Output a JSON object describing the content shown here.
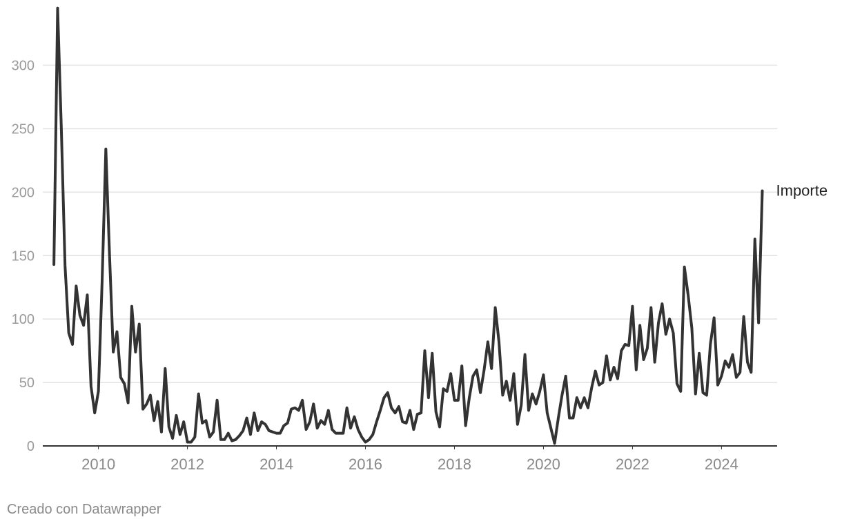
{
  "chart_data": {
    "type": "line",
    "x_axis": {
      "type": "time",
      "ticks": [
        "2010",
        "2012",
        "2014",
        "2016",
        "2018",
        "2020",
        "2022",
        "2024"
      ],
      "range": [
        "2008-10",
        "2025-04"
      ]
    },
    "y_axis": {
      "ticks": [
        "0",
        "50",
        "100",
        "150",
        "200",
        "250",
        "300"
      ],
      "range": [
        0,
        340
      ],
      "grid": true
    },
    "series": [
      {
        "name": "Importe",
        "color": "#333333",
        "start": "2009-01",
        "frequency": "monthly",
        "values": [
          143,
          345,
          250,
          142,
          89,
          80,
          126,
          103,
          95,
          119,
          47,
          26,
          43,
          130,
          234,
          150,
          74,
          90,
          54,
          49,
          34,
          110,
          74,
          96,
          29,
          33,
          40,
          20,
          35,
          11,
          61,
          15,
          6,
          24,
          9,
          19,
          3,
          3,
          7,
          41,
          18,
          20,
          7,
          11,
          36,
          5,
          5,
          10,
          4,
          5,
          8,
          12,
          22,
          9,
          26,
          12,
          19,
          17,
          12,
          11,
          10,
          10,
          16,
          18,
          29,
          30,
          28,
          36,
          13,
          19,
          33,
          14,
          20,
          17,
          28,
          13,
          10,
          10,
          10,
          30,
          14,
          23,
          13,
          7,
          3,
          5,
          9,
          19,
          28,
          38,
          42,
          30,
          26,
          31,
          19,
          18,
          28,
          13,
          25,
          26,
          75,
          38,
          73,
          27,
          15,
          45,
          43,
          57,
          36,
          36,
          63,
          16,
          38,
          55,
          60,
          42,
          60,
          82,
          61,
          109,
          82,
          40,
          51,
          36,
          57,
          17,
          32,
          72,
          28,
          41,
          33,
          43,
          56,
          26,
          14,
          2,
          22,
          40,
          55,
          22,
          22,
          38,
          30,
          38,
          30,
          46,
          59,
          48,
          50,
          71,
          52,
          62,
          53,
          75,
          80,
          79,
          110,
          60,
          95,
          68,
          77,
          109,
          66,
          97,
          112,
          88,
          100,
          89,
          49,
          43,
          141,
          119,
          93,
          41,
          73,
          42,
          40,
          80,
          101,
          48,
          55,
          67,
          62,
          72,
          54,
          58,
          102,
          66,
          58,
          163,
          97,
          201
        ]
      }
    ],
    "series_label": "Importe"
  },
  "footer": {
    "credit": "Creado con Datawrapper"
  }
}
